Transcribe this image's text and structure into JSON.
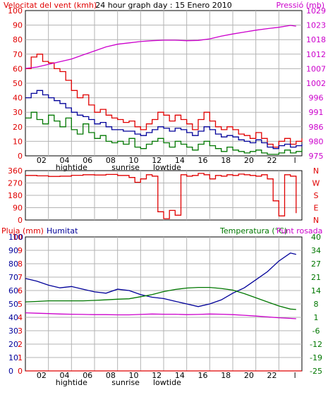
{
  "colors": {
    "background": "#ffffff",
    "frame": "#000000",
    "grid": "#b3b3b3",
    "wind_gust": "#e00000",
    "wind_avg": "#000099",
    "wind_min": "#007700",
    "pressure": "#cc00cc",
    "direction": "#e00000",
    "rain": "#e00000",
    "humidity": "#000099",
    "temperature": "#007700",
    "dewpoint": "#cc00cc"
  },
  "panel1": {
    "title": "24 hour graph day : 15 Enero 2010",
    "left_label": "Velocitat del vent (kmh)",
    "right_label": "Pressió (mb)"
  },
  "panel2": {},
  "panel3": {
    "left_label_1": "Pluja (mm)",
    "left_label_2": "Humitat",
    "right_label_1": "Temperatura (°C)",
    "right_label_2": "Punt rosada"
  },
  "x_axis": {
    "time_labels": [
      "02",
      "04",
      "06",
      "08",
      "10",
      "12",
      "14",
      "16",
      "18",
      "20",
      "22",
      "l"
    ],
    "event_labels": [
      "hightide",
      "sunrise",
      "lowtide"
    ]
  },
  "chart_data": [
    {
      "type": "line",
      "title": "24 hour graph day : 15 Enero 2010",
      "xlabel": "",
      "ylabel": "Velocitat del vent (kmh)",
      "y2label": "Pressió (mb)",
      "x_range": [
        0,
        24
      ],
      "ylim": [
        0,
        100
      ],
      "y2lim": [
        975,
        1029
      ],
      "y_ticks": [
        "0",
        "10",
        "20",
        "30",
        "40",
        "50",
        "60",
        "70",
        "80",
        "90",
        "100"
      ],
      "y2_ticks": [
        "975",
        "980",
        "986",
        "991",
        "996",
        "1002",
        "1007",
        "1012",
        "1018",
        "1023",
        "1029"
      ],
      "grid": true,
      "series": [
        {
          "name": "",
          "role": "gust",
          "x": [
            0,
            0.5,
            1,
            1.5,
            2,
            2.5,
            3,
            3.5,
            4,
            4.5,
            5,
            5.5,
            6,
            6.5,
            7,
            7.5,
            8,
            8.5,
            9,
            9.5,
            10,
            10.5,
            11,
            11.5,
            12,
            12.5,
            13,
            13.5,
            14,
            14.5,
            15,
            15.5,
            16,
            16.5,
            17,
            17.5,
            18,
            18.5,
            19,
            19.5,
            20,
            20.5,
            21,
            21.5,
            22,
            22.5,
            23,
            23.5,
            24
          ],
          "values": [
            60,
            68,
            70,
            65,
            64,
            60,
            58,
            52,
            45,
            40,
            42,
            35,
            30,
            32,
            28,
            26,
            25,
            23,
            24,
            20,
            18,
            22,
            25,
            30,
            28,
            24,
            28,
            25,
            22,
            18,
            25,
            30,
            24,
            20,
            18,
            20,
            18,
            15,
            14,
            12,
            16,
            12,
            8,
            6,
            10,
            12,
            8,
            10,
            12
          ]
        },
        {
          "name": "",
          "role": "average",
          "x": [
            0,
            0.5,
            1,
            1.5,
            2,
            2.5,
            3,
            3.5,
            4,
            4.5,
            5,
            5.5,
            6,
            6.5,
            7,
            7.5,
            8,
            8.5,
            9,
            9.5,
            10,
            10.5,
            11,
            11.5,
            12,
            12.5,
            13,
            13.5,
            14,
            14.5,
            15,
            15.5,
            16,
            16.5,
            17,
            17.5,
            18,
            18.5,
            19,
            19.5,
            20,
            20.5,
            21,
            21.5,
            22,
            22.5,
            23,
            23.5,
            24
          ],
          "values": [
            40,
            43,
            45,
            42,
            40,
            38,
            36,
            33,
            30,
            28,
            27,
            25,
            22,
            23,
            20,
            18,
            18,
            17,
            17,
            15,
            14,
            16,
            18,
            20,
            19,
            17,
            19,
            18,
            16,
            14,
            17,
            20,
            18,
            15,
            13,
            14,
            13,
            11,
            10,
            9,
            11,
            9,
            6,
            5,
            7,
            8,
            6,
            7,
            8
          ]
        },
        {
          "name": "",
          "role": "min",
          "x": [
            0,
            0.5,
            1,
            1.5,
            2,
            2.5,
            3,
            3.5,
            4,
            4.5,
            5,
            5.5,
            6,
            6.5,
            7,
            7.5,
            8,
            8.5,
            9,
            9.5,
            10,
            10.5,
            11,
            11.5,
            12,
            12.5,
            13,
            13.5,
            14,
            14.5,
            15,
            15.5,
            16,
            16.5,
            17,
            17.5,
            18,
            18.5,
            19,
            19.5,
            20,
            20.5,
            21,
            21.5,
            22,
            22.5,
            23,
            23.5,
            24
          ],
          "values": [
            26,
            30,
            25,
            22,
            28,
            24,
            20,
            26,
            18,
            15,
            22,
            16,
            12,
            14,
            10,
            9,
            10,
            8,
            12,
            6,
            5,
            8,
            10,
            12,
            9,
            6,
            10,
            8,
            6,
            4,
            8,
            10,
            7,
            5,
            3,
            6,
            4,
            3,
            2,
            3,
            4,
            2,
            1,
            1,
            2,
            4,
            2,
            3,
            5
          ]
        },
        {
          "name": "",
          "role": "pressure",
          "axis": "right",
          "x": [
            0,
            1,
            2,
            3,
            4,
            5,
            6,
            7,
            8,
            9,
            10,
            11,
            12,
            13,
            14,
            15,
            16,
            17,
            18,
            19,
            20,
            21,
            22,
            23,
            23.5
          ],
          "values": [
            1007.5,
            1008,
            1009,
            1010,
            1011,
            1012.5,
            1014,
            1015.5,
            1016.5,
            1017,
            1017.5,
            1017.8,
            1018,
            1018,
            1017.8,
            1017.9,
            1018.5,
            1019.5,
            1020.3,
            1021,
            1021.7,
            1022.3,
            1022.8,
            1023.5,
            1023.2
          ]
        }
      ]
    },
    {
      "type": "line",
      "title": "",
      "x_range": [
        0,
        24
      ],
      "ylim": [
        0,
        360
      ],
      "y_ticks": [
        "0",
        "90",
        "180",
        "270",
        "360"
      ],
      "y2_ticks": [
        "N",
        "E",
        "S",
        "W",
        "N"
      ],
      "grid": true,
      "series": [
        {
          "name": "",
          "role": "direction",
          "x": [
            0,
            1,
            2,
            3,
            4,
            5,
            6,
            7,
            8,
            9,
            9.5,
            10,
            10.5,
            11,
            11.5,
            12,
            12.5,
            13,
            13.5,
            14,
            14.5,
            15,
            15.5,
            16,
            16.5,
            17,
            17.5,
            18,
            18.5,
            19,
            19.5,
            20,
            20.5,
            21,
            21.5,
            22,
            22.5,
            23,
            23.5
          ],
          "values": [
            325,
            322,
            318,
            320,
            326,
            330,
            328,
            332,
            325,
            310,
            275,
            300,
            330,
            320,
            60,
            10,
            70,
            35,
            330,
            320,
            325,
            340,
            330,
            300,
            325,
            320,
            330,
            325,
            335,
            330,
            325,
            320,
            330,
            300,
            140,
            30,
            330,
            320,
            50
          ]
        }
      ]
    },
    {
      "type": "line",
      "title": "",
      "ylabel": "Pluja (mm)",
      "y2label": "Temperatura (°C)",
      "x_range": [
        0,
        24
      ],
      "ylim": [
        0,
        100
      ],
      "y2lim": [
        -25,
        40
      ],
      "y_ticks": [
        "0",
        "1",
        "2",
        "3",
        "4",
        "5",
        "6",
        "7",
        "8",
        "9",
        "10"
      ],
      "humidity_ticks": [
        "0",
        "10",
        "20",
        "30",
        "40",
        "50",
        "60",
        "70",
        "80",
        "90",
        "100"
      ],
      "y2_ticks": [
        "-25",
        "-19",
        "-12",
        "-6",
        "1",
        "8",
        "14",
        "21",
        "27",
        "34",
        "40"
      ],
      "grid": true,
      "series": [
        {
          "name": "Humitat",
          "role": "humidity",
          "x": [
            0,
            1,
            2,
            3,
            4,
            5,
            6,
            7,
            8,
            9,
            10,
            11,
            12,
            13,
            14,
            15,
            16,
            17,
            18,
            19,
            20,
            21,
            22,
            23,
            23.5
          ],
          "values": [
            69,
            67,
            64,
            62,
            63,
            61,
            59,
            58,
            61,
            60,
            57,
            55,
            54,
            52,
            50,
            48,
            50,
            53,
            58,
            62,
            68,
            74,
            82,
            88,
            87
          ]
        },
        {
          "name": "Temperatura",
          "role": "temperature",
          "axis": "right",
          "x": [
            0,
            1,
            2,
            3,
            4,
            5,
            6,
            7,
            8,
            9,
            10,
            11,
            12,
            13,
            14,
            15,
            16,
            17,
            18,
            19,
            20,
            21,
            22,
            23,
            23.5
          ],
          "values": [
            8.5,
            8.7,
            9,
            9,
            9,
            9,
            9.2,
            9.5,
            9.8,
            10,
            11,
            12,
            13.5,
            14.5,
            15.2,
            15.5,
            15.5,
            15,
            14.2,
            12.5,
            10.5,
            8.5,
            6.5,
            5,
            4.8
          ]
        },
        {
          "name": "Punt rosada",
          "role": "dewpoint",
          "axis": "right",
          "x": [
            0,
            1,
            2,
            3,
            4,
            5,
            6,
            7,
            8,
            9,
            10,
            11,
            12,
            13,
            14,
            15,
            16,
            17,
            18,
            19,
            20,
            21,
            22,
            23,
            23.5
          ],
          "values": [
            3.2,
            3.0,
            2.8,
            2.6,
            2.5,
            2.4,
            2.3,
            2.3,
            2.2,
            2.2,
            2.4,
            2.6,
            2.5,
            2.5,
            2.3,
            2.4,
            2.6,
            2.5,
            2.3,
            2.0,
            1.6,
            1.2,
            0.8,
            0.5,
            0.3
          ]
        },
        {
          "name": "Pluja",
          "role": "rain",
          "x": [
            0,
            24
          ],
          "values": [
            0,
            0
          ]
        }
      ]
    }
  ]
}
